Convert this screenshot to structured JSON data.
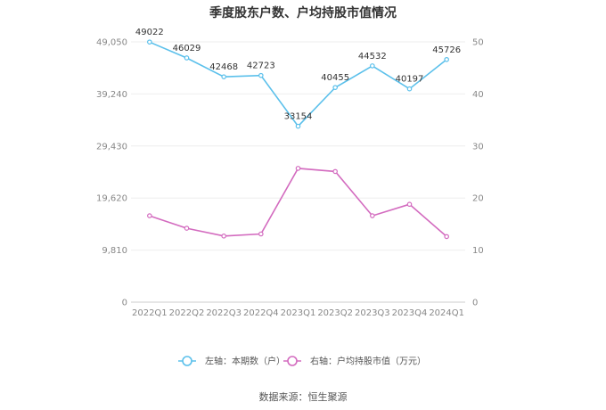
{
  "chart_data": {
    "type": "line",
    "title": "季度股东户数、户均持股市值情况",
    "categories": [
      "2022Q1",
      "2022Q2",
      "2022Q3",
      "2022Q4",
      "2023Q1",
      "2023Q2",
      "2023Q3",
      "2023Q4",
      "2024Q1"
    ],
    "series": [
      {
        "name": "左轴：本期数（户）",
        "axis": "left",
        "color": "#5bc0eb",
        "values": [
          49022,
          46029,
          42468,
          42723,
          33154,
          40455,
          44532,
          40197,
          45726
        ],
        "data_labels": [
          "49022",
          "46029",
          "42468",
          "42723",
          "33154",
          "40455",
          "44532",
          "40197",
          "45726"
        ]
      },
      {
        "name": "右轴：户均持股市值（万元）",
        "axis": "right",
        "color": "#d36bbf",
        "values": [
          16.6,
          14.2,
          12.7,
          13.1,
          25.7,
          25.1,
          16.6,
          18.8,
          12.6
        ]
      }
    ],
    "left_axis": {
      "min": 0,
      "max": 49050,
      "ticks": [
        "0",
        "9,810",
        "19,620",
        "29,430",
        "39,240",
        "49,050"
      ]
    },
    "right_axis": {
      "min": 0,
      "max": 50,
      "ticks": [
        "0",
        "10",
        "20",
        "30",
        "40",
        "50"
      ]
    },
    "grid": true,
    "legend_position": "bottom"
  },
  "source_text": "数据来源：恒生聚源"
}
